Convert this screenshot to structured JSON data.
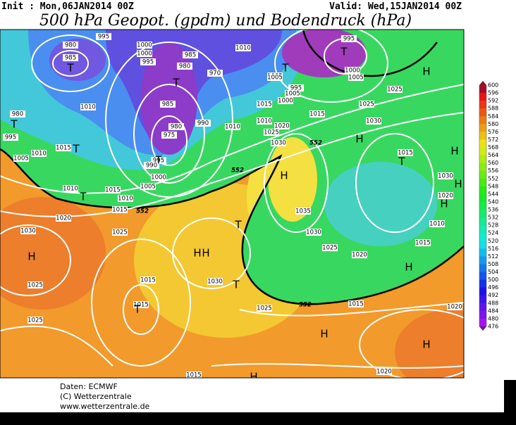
{
  "header": {
    "init": "Init : Mon,06JAN2014 00Z",
    "valid": "Valid: Wed,15JAN2014 00Z",
    "title": "500 hPa Geopot. (gpdm) und Bodendruck (hPa)"
  },
  "map": {
    "pressure_labels": [
      "995",
      "985",
      "980",
      "1000",
      "1000",
      "995",
      "985",
      "980",
      "970",
      "1010",
      "1005",
      "995",
      "995",
      "1000",
      "1005",
      "1005",
      "1010",
      "1015",
      "1010",
      "980",
      "995",
      "1000",
      "1005",
      "1015",
      "1010",
      "985",
      "990",
      "975",
      "980",
      "995",
      "990",
      "1000",
      "1005",
      "1010",
      "1015",
      "1015",
      "1020",
      "1025",
      "1030",
      "1030",
      "1015",
      "1020",
      "1025",
      "1025",
      "1020",
      "1030",
      "1035",
      "1030",
      "1025",
      "1020",
      "1025",
      "1015",
      "1015",
      "1015",
      "1010",
      "1030",
      "1025",
      "1025",
      "1015",
      "1020",
      "1020",
      "1015",
      "1010",
      "1030",
      "1015",
      "1005",
      "1025",
      "1010"
    ],
    "geopotential_labels": [
      "552",
      "552",
      "552",
      "552"
    ],
    "centers": [
      "T",
      "T",
      "T",
      "T",
      "T",
      "H",
      "T",
      "T",
      "T",
      "H",
      "H",
      "H",
      "H",
      "H",
      "H",
      "T",
      "T",
      "H",
      "H",
      "H",
      "T",
      "H",
      "T",
      "H",
      "H"
    ]
  },
  "colorbar": {
    "labels": [
      600,
      596,
      592,
      588,
      584,
      580,
      576,
      572,
      568,
      564,
      560,
      556,
      552,
      548,
      544,
      540,
      536,
      532,
      528,
      524,
      520,
      516,
      512,
      508,
      504,
      500,
      496,
      492,
      488,
      484,
      480,
      476
    ]
  },
  "footer": {
    "lines": [
      "Daten: ECMWF",
      "(C) Wetterzentrale",
      "www.wetterzentrale.de"
    ]
  }
}
